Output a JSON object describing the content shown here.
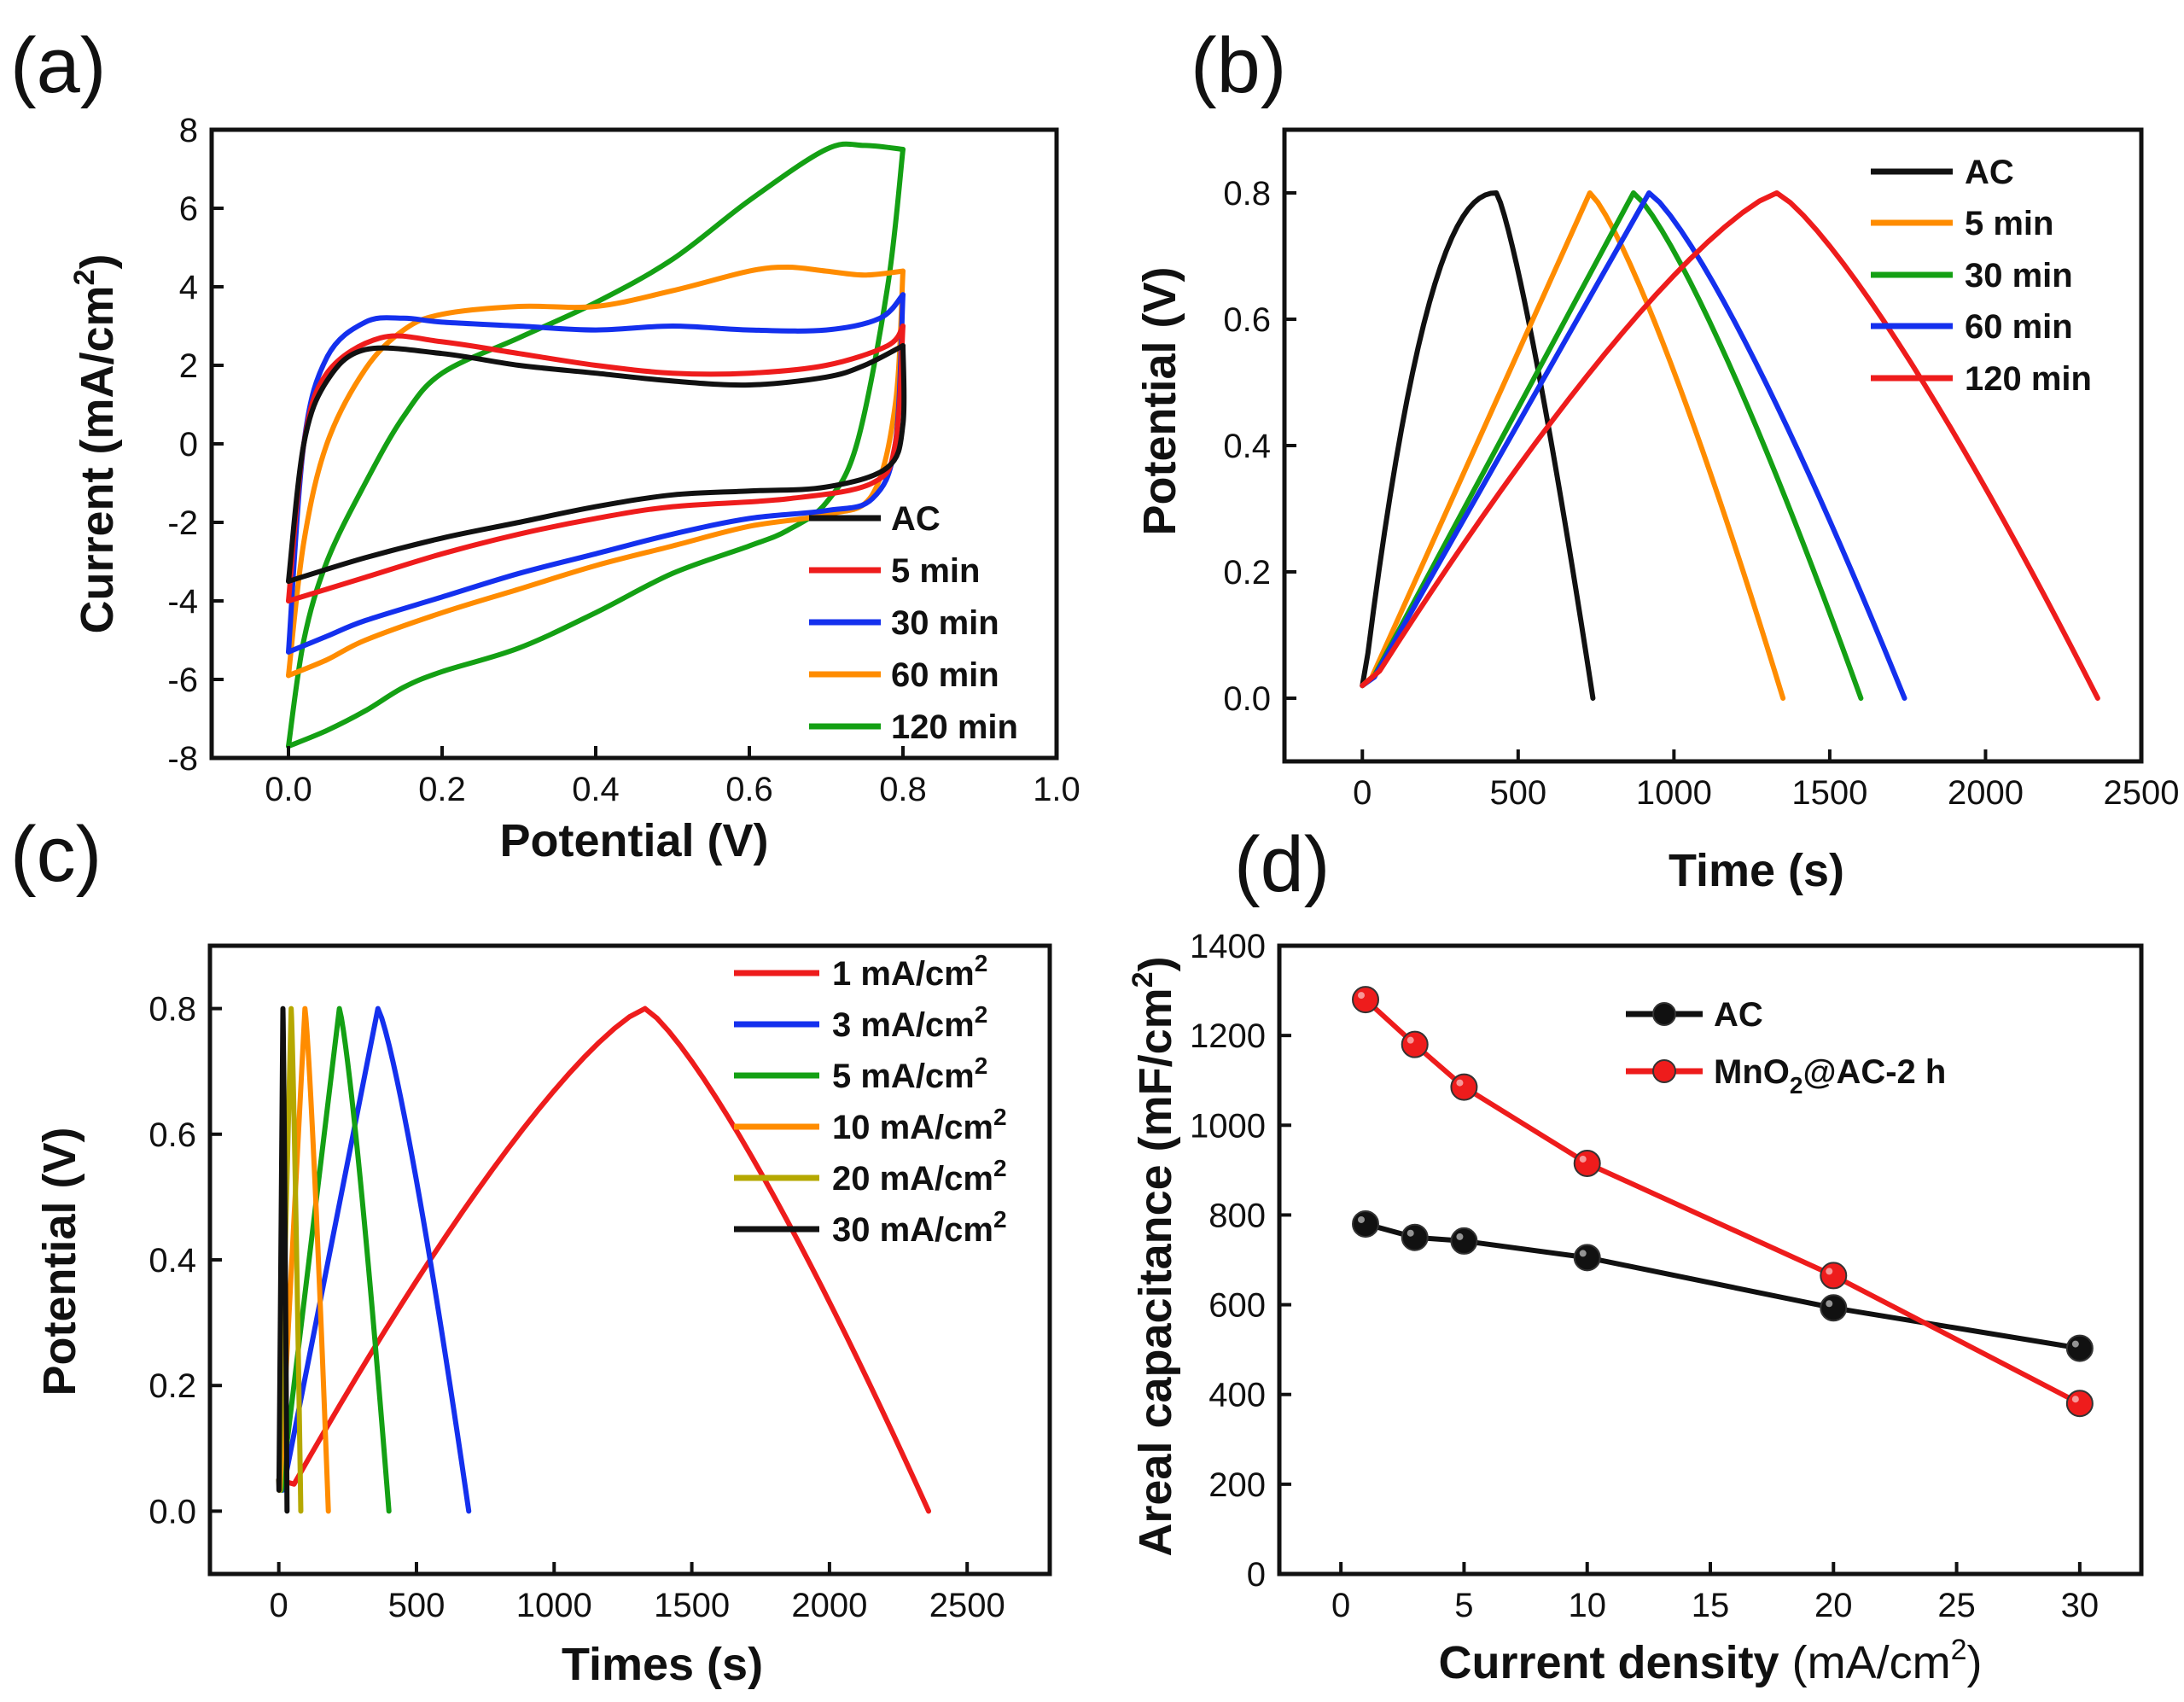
{
  "chart_data": [
    {
      "id": "a",
      "panel_label": "(a)",
      "type": "line",
      "xlabel": "Potential (V)",
      "ylabel": "Current (mA/cm",
      "ylabel_sup": "2",
      "ylabel_end": ")",
      "xlim": [
        -0.1,
        1.0
      ],
      "ylim": [
        -8,
        8
      ],
      "xticks": [
        0.0,
        0.2,
        0.4,
        0.6,
        0.8,
        1.0
      ],
      "xtick_labels": [
        "0.0",
        "0.2",
        "0.4",
        "0.6",
        "0.8",
        "1.0"
      ],
      "yticks": [
        -8,
        -6,
        -4,
        -2,
        0,
        2,
        4,
        6,
        8
      ],
      "ytick_labels": [
        "-8",
        "-6",
        "-4",
        "-2",
        "0",
        "2",
        "4",
        "6",
        "8"
      ],
      "legend_position": "bottom-right",
      "series": [
        {
          "name": "AC",
          "color": "#111111",
          "upper": [
            [
              0,
              -3.5
            ],
            [
              0.02,
              0
            ],
            [
              0.05,
              1.6
            ],
            [
              0.1,
              2.4
            ],
            [
              0.2,
              2.3
            ],
            [
              0.3,
              2.0
            ],
            [
              0.4,
              1.8
            ],
            [
              0.5,
              1.6
            ],
            [
              0.6,
              1.5
            ],
            [
              0.7,
              1.7
            ],
            [
              0.75,
              2.0
            ],
            [
              0.8,
              2.5
            ]
          ],
          "lower": [
            [
              0.8,
              2.5
            ],
            [
              0.8,
              0.5
            ],
            [
              0.78,
              -0.6
            ],
            [
              0.7,
              -1.1
            ],
            [
              0.6,
              -1.2
            ],
            [
              0.5,
              -1.3
            ],
            [
              0.4,
              -1.6
            ],
            [
              0.3,
              -2.0
            ],
            [
              0.2,
              -2.4
            ],
            [
              0.1,
              -2.9
            ],
            [
              0,
              -3.5
            ]
          ]
        },
        {
          "name": "5 min",
          "color": "#ee1c1c",
          "upper": [
            [
              0,
              -4.0
            ],
            [
              0.02,
              0
            ],
            [
              0.05,
              1.8
            ],
            [
              0.12,
              2.7
            ],
            [
              0.2,
              2.6
            ],
            [
              0.3,
              2.3
            ],
            [
              0.4,
              2.0
            ],
            [
              0.5,
              1.8
            ],
            [
              0.6,
              1.8
            ],
            [
              0.7,
              2.0
            ],
            [
              0.78,
              2.5
            ],
            [
              0.8,
              3.0
            ]
          ],
          "lower": [
            [
              0.8,
              3.0
            ],
            [
              0.79,
              0
            ],
            [
              0.76,
              -1.0
            ],
            [
              0.65,
              -1.4
            ],
            [
              0.5,
              -1.6
            ],
            [
              0.4,
              -1.9
            ],
            [
              0.3,
              -2.3
            ],
            [
              0.2,
              -2.8
            ],
            [
              0.1,
              -3.4
            ],
            [
              0,
              -4.0
            ]
          ]
        },
        {
          "name": "30 min",
          "color": "#1430ee",
          "upper": [
            [
              0,
              -5.3
            ],
            [
              0.02,
              0
            ],
            [
              0.05,
              2.2
            ],
            [
              0.1,
              3.1
            ],
            [
              0.15,
              3.2
            ],
            [
              0.2,
              3.1
            ],
            [
              0.3,
              3.0
            ],
            [
              0.4,
              2.9
            ],
            [
              0.5,
              3.0
            ],
            [
              0.6,
              2.9
            ],
            [
              0.7,
              2.9
            ],
            [
              0.77,
              3.2
            ],
            [
              0.8,
              3.8
            ]
          ],
          "lower": [
            [
              0.8,
              3.8
            ],
            [
              0.79,
              0
            ],
            [
              0.76,
              -1.4
            ],
            [
              0.7,
              -1.7
            ],
            [
              0.6,
              -1.9
            ],
            [
              0.5,
              -2.3
            ],
            [
              0.4,
              -2.8
            ],
            [
              0.3,
              -3.3
            ],
            [
              0.2,
              -3.9
            ],
            [
              0.1,
              -4.5
            ],
            [
              0.05,
              -4.9
            ],
            [
              0,
              -5.3
            ]
          ]
        },
        {
          "name": "60 min",
          "color": "#ff8c00",
          "upper": [
            [
              0,
              -5.9
            ],
            [
              0.02,
              -2.5
            ],
            [
              0.05,
              0
            ],
            [
              0.1,
              1.9
            ],
            [
              0.15,
              2.9
            ],
            [
              0.2,
              3.3
            ],
            [
              0.3,
              3.5
            ],
            [
              0.4,
              3.5
            ],
            [
              0.5,
              3.9
            ],
            [
              0.6,
              4.4
            ],
            [
              0.65,
              4.5
            ],
            [
              0.7,
              4.4
            ],
            [
              0.75,
              4.3
            ],
            [
              0.8,
              4.4
            ]
          ],
          "lower": [
            [
              0.8,
              4.4
            ],
            [
              0.79,
              1.0
            ],
            [
              0.76,
              -1.3
            ],
            [
              0.7,
              -1.8
            ],
            [
              0.6,
              -2.1
            ],
            [
              0.5,
              -2.6
            ],
            [
              0.4,
              -3.1
            ],
            [
              0.3,
              -3.7
            ],
            [
              0.2,
              -4.3
            ],
            [
              0.1,
              -5.0
            ],
            [
              0.05,
              -5.5
            ],
            [
              0,
              -5.9
            ]
          ]
        },
        {
          "name": "120 min",
          "color": "#14a014",
          "upper": [
            [
              0,
              -7.7
            ],
            [
              0.02,
              -5.0
            ],
            [
              0.05,
              -3.0
            ],
            [
              0.1,
              -1.0
            ],
            [
              0.15,
              0.7
            ],
            [
              0.2,
              1.8
            ],
            [
              0.3,
              2.7
            ],
            [
              0.4,
              3.6
            ],
            [
              0.5,
              4.7
            ],
            [
              0.6,
              6.2
            ],
            [
              0.7,
              7.5
            ],
            [
              0.75,
              7.6
            ],
            [
              0.8,
              7.5
            ]
          ],
          "lower": [
            [
              0.8,
              7.5
            ],
            [
              0.78,
              4.0
            ],
            [
              0.74,
              0
            ],
            [
              0.7,
              -1.5
            ],
            [
              0.65,
              -2.2
            ],
            [
              0.6,
              -2.6
            ],
            [
              0.5,
              -3.3
            ],
            [
              0.4,
              -4.3
            ],
            [
              0.3,
              -5.2
            ],
            [
              0.2,
              -5.8
            ],
            [
              0.15,
              -6.2
            ],
            [
              0.1,
              -6.8
            ],
            [
              0.05,
              -7.3
            ],
            [
              0,
              -7.7
            ]
          ]
        }
      ]
    },
    {
      "id": "b",
      "panel_label": "(b)",
      "type": "line",
      "xlabel": "Time (s)",
      "ylabel": "Potential (V)",
      "xlim": [
        -250,
        2500
      ],
      "ylim": [
        -0.1,
        0.9
      ],
      "xticks": [
        0,
        500,
        1000,
        1500,
        2000,
        2500
      ],
      "xtick_labels": [
        "0",
        "500",
        "1000",
        "1500",
        "2000",
        "2500"
      ],
      "yticks": [
        0.0,
        0.2,
        0.4,
        0.6,
        0.8
      ],
      "ytick_labels": [
        "0.0",
        "0.2",
        "0.4",
        "0.6",
        "0.8"
      ],
      "legend_position": "top-right",
      "series": [
        {
          "name": "AC",
          "color": "#111111",
          "t_peak": 430,
          "t_end": 740,
          "charge_shape": "convex"
        },
        {
          "name": "5 min",
          "color": "#ff8c00",
          "t_peak": 730,
          "t_end": 1350,
          "charge_shape": "linear"
        },
        {
          "name": "30 min",
          "color": "#14a014",
          "t_peak": 870,
          "t_end": 1600,
          "charge_shape": "linear"
        },
        {
          "name": "60 min",
          "color": "#1430ee",
          "t_peak": 920,
          "t_end": 1740,
          "charge_shape": "linear"
        },
        {
          "name": "120 min",
          "color": "#ee1c1c",
          "t_peak": 1330,
          "t_end": 2360,
          "charge_shape": "slightly-convex"
        }
      ],
      "v_max": 0.8
    },
    {
      "id": "c",
      "panel_label": "(c)",
      "type": "line",
      "xlabel": "Times (s)",
      "ylabel": "Potential (V)",
      "xlim": [
        -250,
        2800
      ],
      "ylim": [
        -0.1,
        0.9
      ],
      "xticks": [
        0,
        500,
        1000,
        1500,
        2000,
        2500
      ],
      "xtick_labels": [
        "0",
        "500",
        "1000",
        "1500",
        "2000",
        "2500"
      ],
      "yticks": [
        0.0,
        0.2,
        0.4,
        0.6,
        0.8
      ],
      "ytick_labels": [
        "0.0",
        "0.2",
        "0.4",
        "0.6",
        "0.8"
      ],
      "legend_position": "top-right",
      "series": [
        {
          "name": "1 mA/cm",
          "sup": "2",
          "color": "#ee1c1c",
          "t_peak": 1330,
          "t_end": 2360
        },
        {
          "name": "3 mA/cm",
          "sup": "2",
          "color": "#1430ee",
          "t_peak": 360,
          "t_end": 690
        },
        {
          "name": "5 mA/cm",
          "sup": "2",
          "color": "#14a014",
          "t_peak": 220,
          "t_end": 400
        },
        {
          "name": "10 mA/cm",
          "sup": "2",
          "color": "#ff8c00",
          "t_peak": 95,
          "t_end": 180
        },
        {
          "name": "20 mA/cm",
          "sup": "2",
          "color": "#b5a800",
          "t_peak": 45,
          "t_end": 80
        },
        {
          "name": "30 mA/cm",
          "sup": "2",
          "color": "#111111",
          "t_peak": 15,
          "t_end": 30
        }
      ],
      "v_max": 0.8
    },
    {
      "id": "d",
      "panel_label": "(d)",
      "type": "scatter",
      "xlabel": "Current density ",
      "xlabel_paren": "(mA/cm",
      "xlabel_sup": "2",
      "xlabel_end": ")",
      "ylabel": "Areal capacitance ",
      "ylabel_paren": "(mF/cm",
      "ylabel_sup": "2",
      "ylabel_end": ")",
      "xlim": [
        -2.5,
        32.5
      ],
      "ylim": [
        0,
        1400
      ],
      "xticks": [
        0,
        5,
        10,
        15,
        20,
        25,
        30
      ],
      "xtick_labels": [
        "0",
        "5",
        "10",
        "15",
        "20",
        "25",
        "30"
      ],
      "yticks": [
        0,
        200,
        400,
        600,
        800,
        1000,
        1200,
        1400
      ],
      "ytick_labels": [
        "0",
        "200",
        "400",
        "600",
        "800",
        "1000",
        "1200",
        "1400"
      ],
      "legend_position": "top-right",
      "x": [
        1,
        3,
        5,
        10,
        20,
        30
      ],
      "series": [
        {
          "name": "AC",
          "color": "#111111",
          "values": [
            780,
            750,
            742,
            705,
            593,
            503
          ]
        },
        {
          "name": "MnO",
          "sub": "2",
          "name_end": "@AC-2 h",
          "color": "#ee1c1c",
          "values": [
            1280,
            1180,
            1085,
            915,
            665,
            380
          ]
        }
      ]
    }
  ]
}
